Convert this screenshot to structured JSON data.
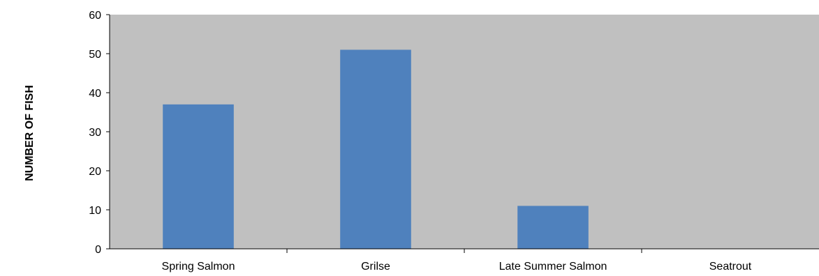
{
  "chart_data": {
    "type": "bar",
    "categories": [
      "Spring Salmon",
      "Grilse",
      "Late Summer Salmon",
      "Seatrout"
    ],
    "values": [
      37,
      51,
      11,
      0
    ],
    "ylabel": "NUMBER OF FISH",
    "ylim": [
      0,
      60
    ],
    "yticks": [
      "0",
      "10",
      "20",
      "30",
      "40",
      "50",
      "60"
    ],
    "grid": false,
    "legend": "none",
    "colors": {
      "bar": "#4f81bd",
      "plot_background": "#c0c0c0",
      "axis": "#000000"
    }
  }
}
